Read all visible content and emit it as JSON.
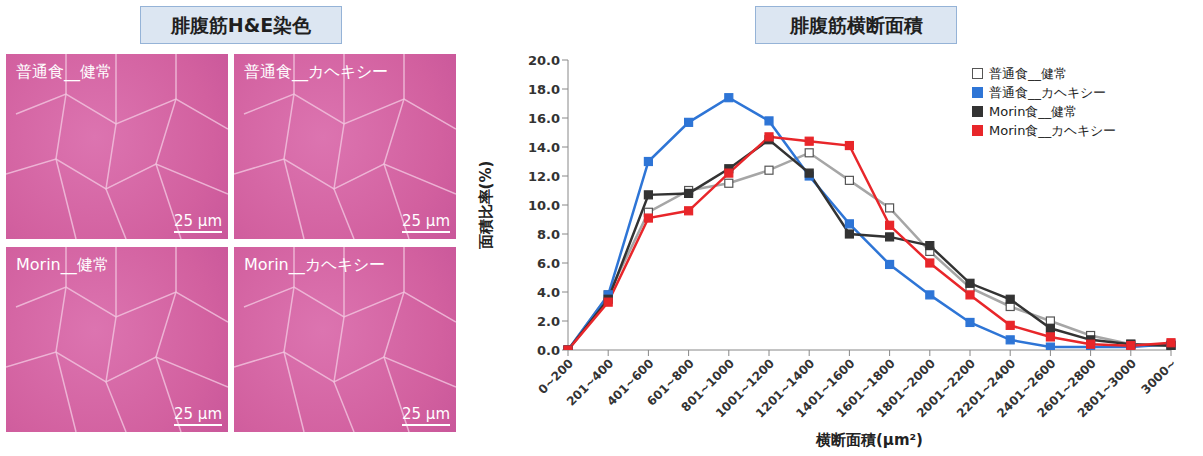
{
  "histology": {
    "title": "腓腹筋H&E染色",
    "panels": [
      {
        "label": "普通食__健常",
        "scale_bar": "25 μm"
      },
      {
        "label": "普通食__カヘキシー",
        "scale_bar": "25 μm"
      },
      {
        "label": "Morin__健常",
        "scale_bar": "25 μm"
      },
      {
        "label": "Morin__カヘキシー",
        "scale_bar": "25 μm"
      }
    ]
  },
  "chart_data": {
    "type": "line",
    "title": "腓腹筋横断面積",
    "x_label": "横断面積(μm²)",
    "y_label": "面積比率(%)",
    "categories": [
      "0~200",
      "201~400",
      "401~600",
      "601~800",
      "801~1000",
      "1001~1200",
      "1201~1400",
      "1401~1600",
      "1601~1800",
      "1801~2000",
      "2001~2200",
      "2201~2400",
      "2401~2600",
      "2601~2800",
      "2801~3000",
      "3000~"
    ],
    "series": [
      {
        "name": "普通食__健常",
        "color": "#a6a6a6",
        "marker": "square_open",
        "values": [
          0,
          3.8,
          9.5,
          11.0,
          11.5,
          12.4,
          13.6,
          11.7,
          9.8,
          6.8,
          4.3,
          3.0,
          2.0,
          1.0,
          0.4,
          0.3
        ]
      },
      {
        "name": "普通食__カヘキシー",
        "color": "#2e75d6",
        "marker": "square",
        "values": [
          0,
          3.8,
          13.0,
          15.7,
          17.4,
          15.8,
          12.0,
          8.7,
          5.9,
          3.8,
          1.9,
          0.7,
          0.2,
          0.2,
          0.2,
          0.4
        ]
      },
      {
        "name": "Morin食__健常",
        "color": "#333333",
        "marker": "square",
        "values": [
          0,
          3.5,
          10.7,
          10.8,
          12.5,
          14.5,
          12.2,
          8.0,
          7.8,
          7.2,
          4.6,
          3.5,
          1.5,
          0.7,
          0.4,
          0.3
        ]
      },
      {
        "name": "Morin食__カヘキシー",
        "color": "#e8262a",
        "marker": "square",
        "values": [
          0,
          3.3,
          9.1,
          9.6,
          12.2,
          14.7,
          14.4,
          14.1,
          8.6,
          6.0,
          3.8,
          1.7,
          0.9,
          0.4,
          0.3,
          0.5
        ]
      }
    ],
    "ylim": [
      0,
      20
    ],
    "yticks": [
      {
        "value": 0,
        "label": "0.0"
      },
      {
        "value": 2,
        "label": "2.0"
      },
      {
        "value": 4,
        "label": "4.0"
      },
      {
        "value": 6,
        "label": "6.0"
      },
      {
        "value": 8,
        "label": "8.0"
      },
      {
        "value": 10,
        "label": "10.0"
      },
      {
        "value": 12,
        "label": "12.0"
      },
      {
        "value": 14,
        "label": "14.0"
      },
      {
        "value": 16,
        "label": "16.0"
      },
      {
        "value": 18,
        "label": "18.0"
      },
      {
        "value": 20,
        "label": "20.0"
      }
    ],
    "grid": false,
    "legend": "upper right"
  }
}
